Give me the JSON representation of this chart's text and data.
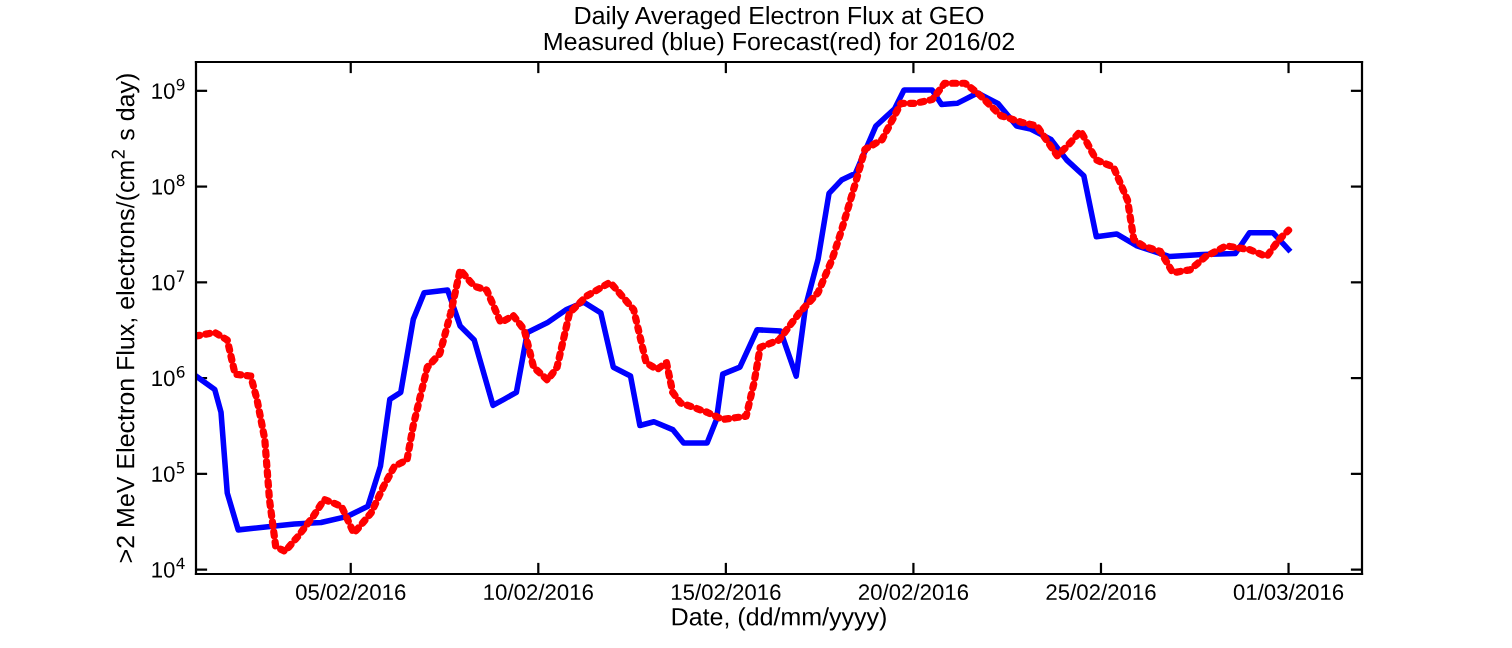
{
  "chart_data": {
    "type": "line",
    "title": "Daily Averaged Electron Flux at GEO",
    "subtitle": "Measured (blue) Forecast(red) for 2016/02",
    "xlabel": "Date, (dd/mm/yyyy)",
    "ylabel": ">2 MeV Electron Flux, electrons/(cm$^{2}$ s day)",
    "log": "y",
    "grid": false,
    "legend": false,
    "marker": "none",
    "xlim": [
      "2016-01-31T21:00",
      "2016-03-02T23:00"
    ],
    "xticks": [
      {
        "value": "2016-02-05",
        "label": "05/02/2016"
      },
      {
        "value": "2016-02-10",
        "label": "10/02/2016"
      },
      {
        "value": "2016-02-15",
        "label": "15/02/2016"
      },
      {
        "value": "2016-02-20",
        "label": "20/02/2016"
      },
      {
        "value": "2016-02-25",
        "label": "25/02/2016"
      },
      {
        "value": "2016-03-01",
        "label": "01/03/2016"
      }
    ],
    "ylim": [
      9000,
      2000000000
    ],
    "yticks": [
      {
        "value": 10000,
        "label": "10$^{4}$"
      },
      {
        "value": 100000,
        "label": "10$^{5}$"
      },
      {
        "value": 1000000,
        "label": "10$^{6}$"
      },
      {
        "value": 10000000,
        "label": "10$^{7}$"
      },
      {
        "value": 100000000,
        "label": "10$^{8}$"
      },
      {
        "value": 1000000000,
        "label": "10$^{9}$"
      }
    ],
    "series": [
      {
        "color": "#0000ff",
        "line_style": "solid",
        "x": [
          "2016-01-31T21:00",
          "2016-02-01T09:00",
          "2016-02-01T13:00",
          "2016-02-01T17:00",
          "2016-02-02T00:00",
          "2016-02-02T19:00",
          "2016-02-03T12:00",
          "2016-02-04T05:00",
          "2016-02-04T22:00",
          "2016-02-05T11:00",
          "2016-02-05T19:00",
          "2016-02-06T01:00",
          "2016-02-06T08:00",
          "2016-02-06T16:00",
          "2016-02-06T23:00",
          "2016-02-07T14:00",
          "2016-02-07T22:00",
          "2016-02-08T07:00",
          "2016-02-08T19:00",
          "2016-02-09T02:00",
          "2016-02-09T10:00",
          "2016-02-09T17:00",
          "2016-02-10T06:00",
          "2016-02-10T18:00",
          "2016-02-11T05:00",
          "2016-02-11T16:00",
          "2016-02-12T00:00",
          "2016-02-12T11:00",
          "2016-02-12T17:00",
          "2016-02-13T02:00",
          "2016-02-13T14:00",
          "2016-02-13T21:00",
          "2016-02-14T12:00",
          "2016-02-14T18:00",
          "2016-02-14T22:00",
          "2016-02-15T09:00",
          "2016-02-15T20:00",
          "2016-02-16T11:00",
          "2016-02-16T21:00",
          "2016-02-17T03:00",
          "2016-02-17T11:00",
          "2016-02-17T18:00",
          "2016-02-18T02:00",
          "2016-02-18T11:00",
          "2016-02-19T00:00",
          "2016-02-19T12:00",
          "2016-02-19T18:00",
          "2016-02-20T12:00",
          "2016-02-20T18:00",
          "2016-02-21T04:00",
          "2016-02-21T17:00",
          "2016-02-22T06:00",
          "2016-02-22T18:00",
          "2016-02-23T03:00",
          "2016-02-23T16:00",
          "2016-02-24T02:00",
          "2016-02-24T13:00",
          "2016-02-24T21:00",
          "2016-02-25T10:00",
          "2016-02-25T23:00",
          "2016-02-26T20:00",
          "2016-02-27T17:00",
          "2016-02-28T14:00",
          "2016-02-28T23:00",
          "2016-02-29T14:00",
          "2016-03-01T00:00"
        ],
        "values": [
          1050000.0,
          760000.0,
          440000.0,
          63000.0,
          26000.0,
          28000.0,
          30000.0,
          31000.0,
          36000.0,
          46000.0,
          120000.0,
          600000.0,
          710000.0,
          4100000.0,
          7800000.0,
          8300000.0,
          3500000.0,
          2500000.0,
          520000.0,
          600000.0,
          710000.0,
          3000000.0,
          3800000.0,
          5200000.0,
          6200000.0,
          4800000.0,
          1300000.0,
          1050000.0,
          320000.0,
          350000.0,
          290000.0,
          210000.0,
          210000.0,
          370000.0,
          1100000.0,
          1300000.0,
          3200000.0,
          3100000.0,
          1050000.0,
          5600000.0,
          17400000.0,
          85000000.0,
          117000000.0,
          138000000.0,
          430000000.0,
          650000000.0,
          1020000000.0,
          1020000000.0,
          720000000.0,
          740000000.0,
          950000000.0,
          740000000.0,
          430000000.0,
          400000000.0,
          310000000.0,
          190000000.0,
          130000000.0,
          30000000.0,
          32000000.0,
          24000000.0,
          18600000.0,
          19500000.0,
          20000000.0,
          33000000.0,
          33000000.0,
          22000000.0
        ]
      },
      {
        "color": "#ff0000",
        "line_style": "dotted",
        "x": [
          "2016-01-31T21:00",
          "2016-02-01T09:00",
          "2016-02-01T17:00",
          "2016-02-01T22:00",
          "2016-02-02T08:00",
          "2016-02-02T12:00",
          "2016-02-02T17:00",
          "2016-02-02T20:00",
          "2016-02-03T00:00",
          "2016-02-03T06:00",
          "2016-02-03T14:00",
          "2016-02-04T00:00",
          "2016-02-04T07:00",
          "2016-02-04T18:00",
          "2016-02-05T02:00",
          "2016-02-05T13:00",
          "2016-02-05T21:00",
          "2016-02-06T04:00",
          "2016-02-06T12:00",
          "2016-02-06T16:00",
          "2016-02-07T01:00",
          "2016-02-07T09:00",
          "2016-02-07T16:00",
          "2016-02-07T22:00",
          "2016-02-08T07:00",
          "2016-02-08T15:00",
          "2016-02-09T00:00",
          "2016-02-09T08:00",
          "2016-02-09T15:00",
          "2016-02-09T21:00",
          "2016-02-10T06:00",
          "2016-02-10T12:00",
          "2016-02-10T20:00",
          "2016-02-11T07:00",
          "2016-02-11T22:00",
          "2016-02-12T13:00",
          "2016-02-12T21:00",
          "2016-02-13T04:00",
          "2016-02-13T10:00",
          "2016-02-13T14:00",
          "2016-02-13T19:00",
          "2016-02-14T01:00",
          "2016-02-14T12:00",
          "2016-02-14T22:00",
          "2016-02-15T13:00",
          "2016-02-15T18:00",
          "2016-02-15T22:00",
          "2016-02-16T10:00",
          "2016-02-16T23:00",
          "2016-02-17T11:00",
          "2016-02-17T20:00",
          "2016-02-18T02:00",
          "2016-02-18T11:00",
          "2016-02-18T17:00",
          "2016-02-19T04:00",
          "2016-02-19T16:00",
          "2016-02-20T01:00",
          "2016-02-20T12:00",
          "2016-02-20T20:00",
          "2016-02-21T09:00",
          "2016-02-21T17:00",
          "2016-02-22T08:00",
          "2016-02-22T21:00",
          "2016-02-23T07:00",
          "2016-02-23T20:00",
          "2016-02-24T02:00",
          "2016-02-24T11:00",
          "2016-02-24T21:00",
          "2016-02-25T08:00",
          "2016-02-25T17:00",
          "2016-02-25T21:00",
          "2016-02-26T03:00",
          "2016-02-26T14:00",
          "2016-02-26T22:00",
          "2016-02-27T09:00",
          "2016-02-27T19:00",
          "2016-02-28T08:00",
          "2016-02-28T23:00",
          "2016-02-29T10:00",
          "2016-02-29T18:00",
          "2016-03-01T00:00"
        ],
        "values": [
          2750000.0,
          3000000.0,
          2500000.0,
          1100000.0,
          1050000.0,
          600000.0,
          230000.0,
          54000.0,
          17400.0,
          15500.0,
          22000.0,
          36000.0,
          54000.0,
          46000.0,
          24000.0,
          39000.0,
          74000.0,
          120000.0,
          140000.0,
          320000.0,
          1300000.0,
          1800000.0,
          4800000.0,
          13500000.0,
          9100000.0,
          8300000.0,
          3800000.0,
          4500000.0,
          3200000.0,
          1300000.0,
          950000.0,
          1300000.0,
          4800000.0,
          7200000.0,
          10000000.0,
          5200000.0,
          1450000.0,
          1230000.0,
          1450000.0,
          710000.0,
          550000.0,
          510000.0,
          440000.0,
          370000.0,
          400000.0,
          890000.0,
          2100000.0,
          2500000.0,
          4800000.0,
          7800000.0,
          17400000.0,
          35000000.0,
          110000000.0,
          245000000.0,
          310000000.0,
          740000000.0,
          740000000.0,
          810000000.0,
          1200000000.0,
          1200000000.0,
          950000000.0,
          550000000.0,
          470000000.0,
          430000000.0,
          210000000.0,
          260000000.0,
          380000000.0,
          190000000.0,
          160000000.0,
          72000000.0,
          28000000.0,
          24000000.0,
          21000000.0,
          12600000.0,
          13500000.0,
          18600000.0,
          24000000.0,
          22000000.0,
          18600000.0,
          28000000.0,
          35000000.0
        ]
      }
    ]
  }
}
